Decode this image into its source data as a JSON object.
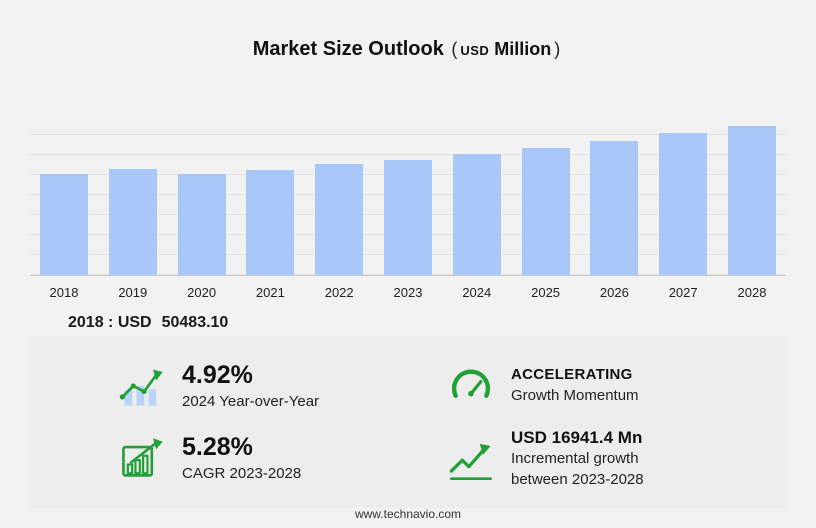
{
  "page": {
    "title": "Market Size Outlook",
    "unit_open": "(",
    "unit_currency": "USD",
    "unit_word": "Million",
    "unit_close": ")",
    "footer": "www.technavio.com"
  },
  "chart_data": {
    "type": "bar",
    "title": "Market Size Outlook (USD Million)",
    "categories": [
      "2018",
      "2019",
      "2020",
      "2021",
      "2022",
      "2023",
      "2024",
      "2025",
      "2026",
      "2027",
      "2028"
    ],
    "values": [
      50483.1,
      52900,
      50250,
      52650,
      55300,
      57742,
      60583,
      63550,
      66800,
      70900,
      74683
    ],
    "xlabel": "",
    "ylabel": "",
    "ylim": [
      0,
      80000
    ],
    "grid": true,
    "legend": "none",
    "bar_color": "#a9c7f8"
  },
  "base_note": {
    "label": "2018 : USD",
    "value": "50483.10"
  },
  "stats": {
    "yoy": {
      "icon": "bar-growth-icon",
      "value": "4.92%",
      "label": "2024 Year-over-Year"
    },
    "momentum": {
      "icon": "speedometer-icon",
      "title": "ACCELERATING",
      "label": "Growth Momentum"
    },
    "cagr": {
      "icon": "chart-growth-icon",
      "value": "5.28%",
      "label": "CAGR 2023-2028"
    },
    "incremental": {
      "icon": "trend-arrow-icon",
      "value": "USD 16941.4 Mn",
      "line1": "Incremental growth",
      "line2": "between 2023-2028"
    }
  },
  "colors": {
    "accent_green": "#21a038",
    "bar_blue": "#a9c7f8",
    "background": "#f2f2f2",
    "panel": "#ededed"
  }
}
